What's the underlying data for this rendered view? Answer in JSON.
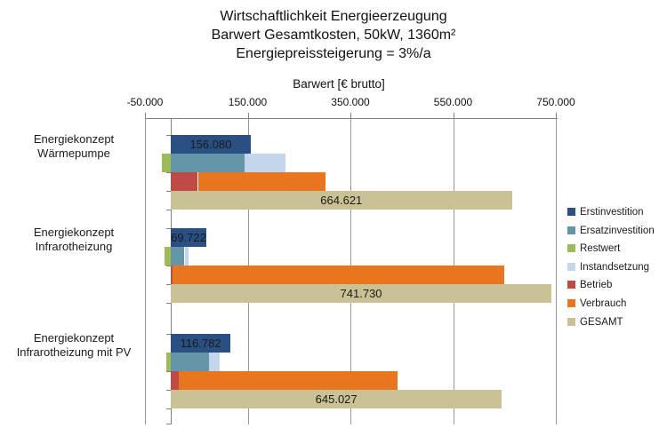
{
  "chart_data": {
    "type": "bar",
    "orientation": "horizontal",
    "title_lines": [
      "Wirtschaftlichkeit Energieerzeugung",
      "Barwert Gesamtkosten, 50kW, 1360m²",
      "Energiepreissteigerung = 3%/a"
    ],
    "xlabel": "Barwert [€ brutto]",
    "xlim": [
      -50000,
      750000
    ],
    "x_ticks": [
      {
        "value": -50000,
        "label": "-50.000"
      },
      {
        "value": 150000,
        "label": "150.000"
      },
      {
        "value": 350000,
        "label": "350.000"
      },
      {
        "value": 550000,
        "label": "550.000"
      },
      {
        "value": 750000,
        "label": "750.000"
      }
    ],
    "grid": true,
    "legend_position": "right",
    "categories": [
      "Energiekonzept Wärmepumpe",
      "Energiekonzept Infrarotheizung",
      "Energiekonzept Infrarotheizung mit PV"
    ],
    "series": [
      {
        "name": "Erstinvestition",
        "color": "#2A5083",
        "row": 0,
        "values": [
          156080,
          69722,
          116782
        ],
        "labels": [
          "156.080",
          "69.722",
          "116.782"
        ]
      },
      {
        "name": "Ersatzinvestition",
        "color": "#6495A8",
        "row": 1,
        "values": [
          144000,
          27000,
          75000
        ]
      },
      {
        "name": "Restwert",
        "color": "#9DBB59",
        "row": 1,
        "values": [
          -17000,
          -12000,
          -8000
        ]
      },
      {
        "name": "Instandsetzung",
        "color": "#C3D6EB",
        "row": 1,
        "stack_after": "Ersatzinvestition",
        "values": [
          80000,
          8000,
          20000
        ]
      },
      {
        "name": "Betrieb",
        "color": "#BF4B47",
        "row": 2,
        "values": [
          53000,
          4000,
          16000
        ]
      },
      {
        "name": "Verbrauch",
        "color": "#E8761E",
        "row": 2,
        "stack_after": "Betrieb",
        "values": [
          248541,
          645008,
          425245
        ]
      },
      {
        "name": "GESAMT",
        "color": "#CAC294",
        "row": 3,
        "values": [
          664621,
          741730,
          645027
        ],
        "labels": [
          "664.621",
          "741.730",
          "645.027"
        ]
      }
    ]
  },
  "colors": {
    "gridline": "#9a9a9a",
    "axis": "#808080",
    "text": "#1a1a1a"
  }
}
